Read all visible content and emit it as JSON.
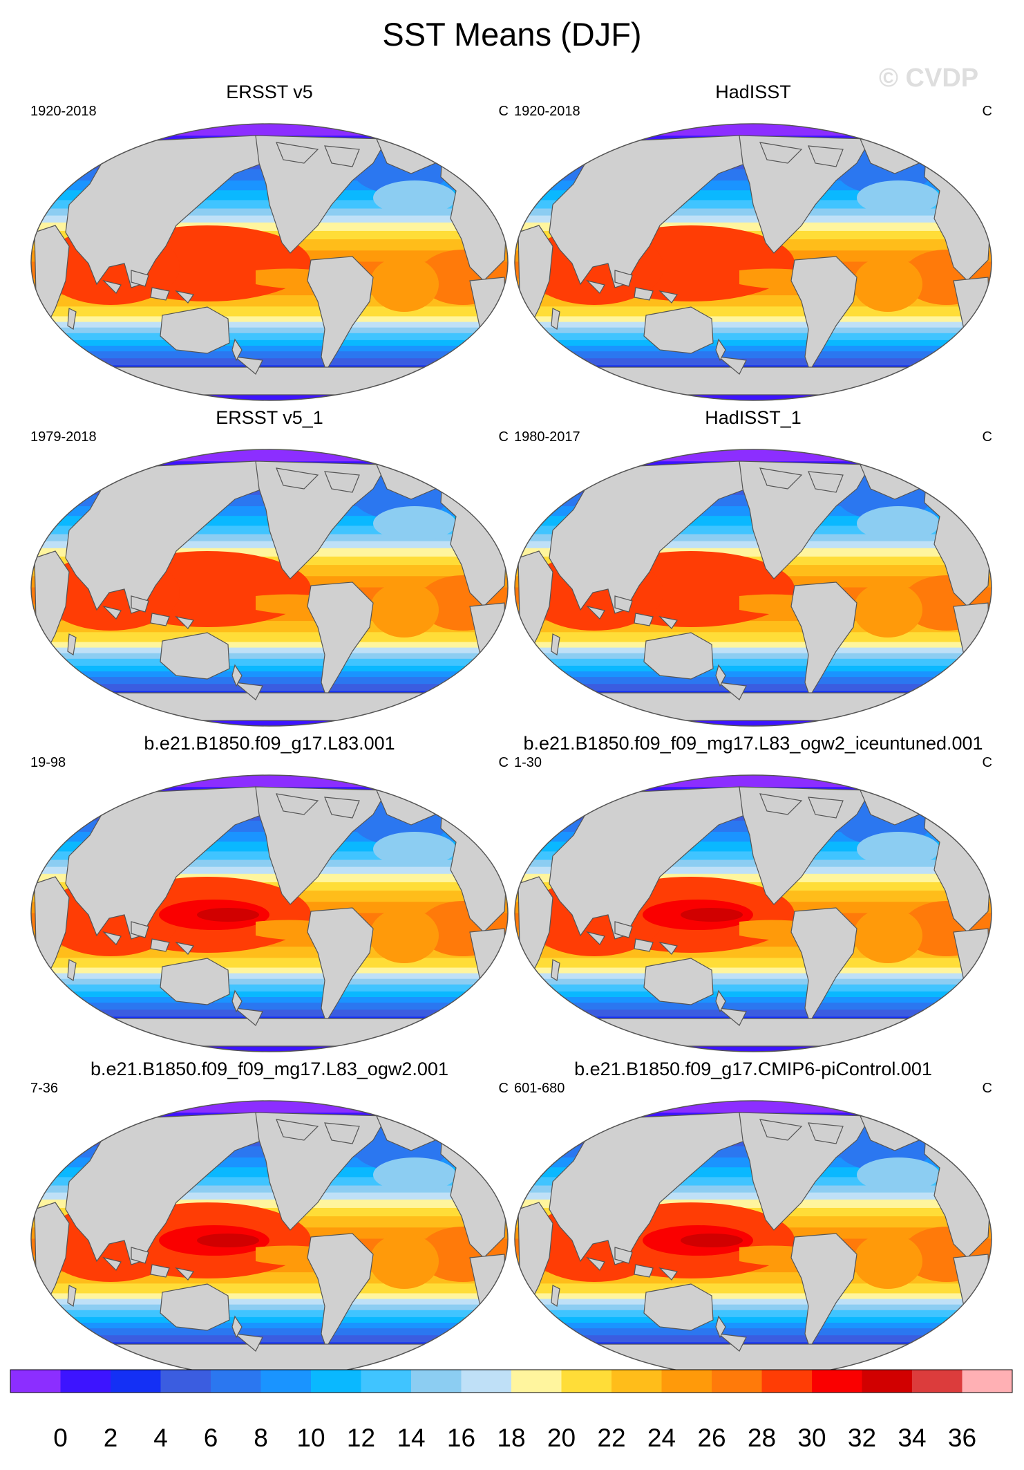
{
  "figure": {
    "title": "SST Means (DJF)",
    "watermark": "© CVDP"
  },
  "panels": [
    {
      "title": "ERSST v5",
      "period": "1920-2018",
      "units": "C",
      "variant": "obs"
    },
    {
      "title": "HadISST",
      "period": "1920-2018",
      "units": "C",
      "variant": "obs2"
    },
    {
      "title": "ERSST v5_1",
      "period": "1979-2018",
      "units": "C",
      "variant": "obs"
    },
    {
      "title": "HadISST_1",
      "period": "1980-2017",
      "units": "C",
      "variant": "obs2"
    },
    {
      "title": "b.e21.B1850.f09_g17.L83.001",
      "period": "19-98",
      "units": "C",
      "variant": "model"
    },
    {
      "title": "b.e21.B1850.f09_f09_mg17.L83_ogw2_iceuntuned.001",
      "period": "1-30",
      "units": "C",
      "variant": "model"
    },
    {
      "title": "b.e21.B1850.f09_f09_mg17.L83_ogw2.001",
      "period": "7-36",
      "units": "C",
      "variant": "model"
    },
    {
      "title": "b.e21.B1850.f09_g17.CMIP6-piControl.001",
      "period": "601-680",
      "units": "C",
      "variant": "model"
    }
  ],
  "colorbar": {
    "tick_labels": [
      "0",
      "2",
      "4",
      "6",
      "8",
      "10",
      "12",
      "14",
      "16",
      "18",
      "20",
      "22",
      "24",
      "26",
      "28",
      "30",
      "32",
      "34",
      "36"
    ],
    "colors": [
      "#8c2eff",
      "#3d14ff",
      "#1430f5",
      "#3b5de0",
      "#2b77f0",
      "#1a94ff",
      "#0ab8ff",
      "#40c4ff",
      "#8ccdf2",
      "#bfe0f7",
      "#fff59e",
      "#ffdd38",
      "#ffbd1a",
      "#ff9a0a",
      "#ff7a0a",
      "#ff3d05",
      "#fa0000",
      "#d10000",
      "#dc3c3c",
      "#ffb0b4"
    ]
  },
  "map_style": {
    "land_color": "#d0d0d0",
    "coast_color": "#555555"
  }
}
